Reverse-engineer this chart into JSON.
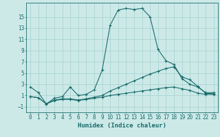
{
  "bg_color": "#cce9e8",
  "grid_color": "#aad4d2",
  "line_color": "#1a6b6b",
  "xlabel": "Humidex (Indice chaleur)",
  "xlim": [
    -0.5,
    23.5
  ],
  "ylim": [
    -2.0,
    17.5
  ],
  "yticks": [
    -1,
    1,
    3,
    5,
    7,
    9,
    11,
    13,
    15
  ],
  "xticks": [
    0,
    1,
    2,
    3,
    4,
    5,
    6,
    7,
    8,
    9,
    10,
    11,
    12,
    13,
    14,
    15,
    16,
    17,
    18,
    19,
    20,
    21,
    22,
    23
  ],
  "line1_x": [
    0,
    1,
    2,
    3,
    4,
    5,
    6,
    7,
    8,
    9,
    10,
    11,
    12,
    13,
    14,
    15,
    16,
    17,
    18,
    19,
    20,
    21,
    22,
    23
  ],
  "line1_y": [
    2.5,
    1.5,
    -0.5,
    0.5,
    0.8,
    2.5,
    1.0,
    1.2,
    2.0,
    5.5,
    13.5,
    16.2,
    16.5,
    16.3,
    16.5,
    15.0,
    9.2,
    7.2,
    6.5,
    4.0,
    3.0,
    2.5,
    1.5,
    1.5
  ],
  "line2_x": [
    0,
    1,
    2,
    3,
    4,
    5,
    6,
    7,
    8,
    9,
    10,
    11,
    12,
    13,
    14,
    15,
    16,
    17,
    18,
    19,
    20,
    21,
    22,
    23
  ],
  "line2_y": [
    0.8,
    0.6,
    -0.5,
    0.2,
    0.4,
    0.4,
    0.2,
    0.4,
    0.7,
    1.0,
    1.8,
    2.4,
    3.0,
    3.6,
    4.2,
    4.8,
    5.3,
    5.8,
    6.1,
    4.3,
    3.8,
    2.6,
    1.4,
    1.3
  ],
  "line3_x": [
    0,
    1,
    2,
    3,
    4,
    5,
    6,
    7,
    8,
    9,
    10,
    11,
    12,
    13,
    14,
    15,
    16,
    17,
    18,
    19,
    20,
    21,
    22,
    23
  ],
  "line3_y": [
    0.8,
    0.6,
    -0.5,
    0.1,
    0.3,
    0.3,
    0.1,
    0.3,
    0.5,
    0.7,
    1.0,
    1.2,
    1.4,
    1.6,
    1.8,
    2.0,
    2.2,
    2.4,
    2.5,
    2.2,
    1.9,
    1.4,
    1.2,
    1.2
  ]
}
